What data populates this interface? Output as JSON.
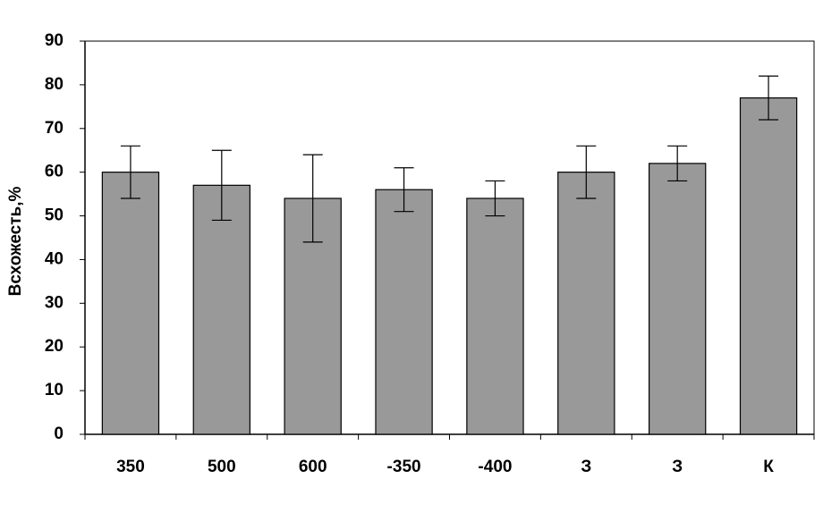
{
  "chart_data": {
    "type": "bar",
    "y_label": "Всхожесть,%",
    "categories": [
      "350",
      "500",
      "600",
      "-350",
      "-400",
      "З",
      "З",
      "К"
    ],
    "values": [
      60,
      57,
      54,
      56,
      54,
      60,
      62,
      77
    ],
    "errors": [
      6,
      8,
      10,
      5,
      4,
      6,
      4,
      5
    ],
    "color": "#999999",
    "ylim": [
      0,
      90
    ],
    "yticks": [
      0,
      10,
      20,
      30,
      40,
      50,
      60,
      70,
      80,
      90
    ],
    "grid": false
  }
}
